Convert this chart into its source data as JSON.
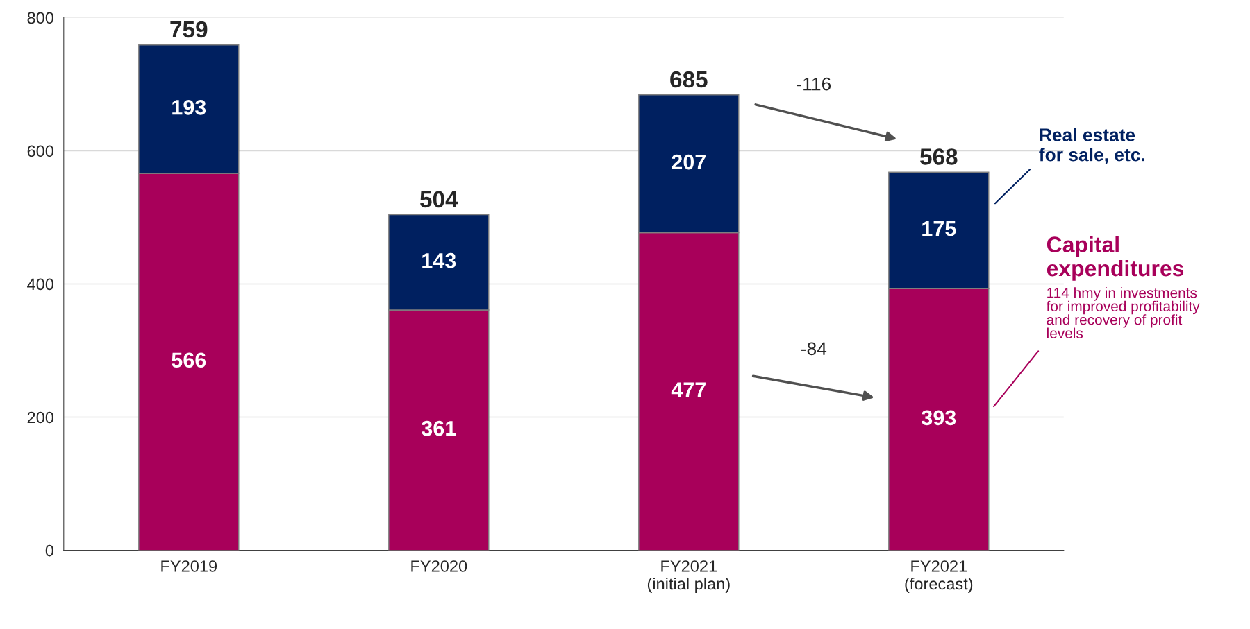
{
  "chart_data": {
    "type": "bar",
    "stacked": true,
    "categories": [
      "FY2019",
      "FY2020",
      "FY2021\n(initial plan)",
      "FY2021\n(forecast)"
    ],
    "series": [
      {
        "name": "Capital\nexpenditures",
        "color": "#a8005a",
        "values": [
          566,
          361,
          477,
          393
        ]
      },
      {
        "name": "Real estate\nfor sale, etc.",
        "color": "#002060",
        "values": [
          193,
          143,
          207,
          175
        ]
      }
    ],
    "data_labels": true,
    "totals": [
      "759",
      "504",
      "685",
      "568"
    ],
    "ylim": [
      0,
      800
    ],
    "yticks": [
      0,
      200,
      400,
      600,
      800
    ],
    "grid": "y",
    "annotations": [
      "-116",
      "-84",
      "114 hmy in investments\nfor improved profitability\nand recovery of profit\nlevels"
    ]
  }
}
